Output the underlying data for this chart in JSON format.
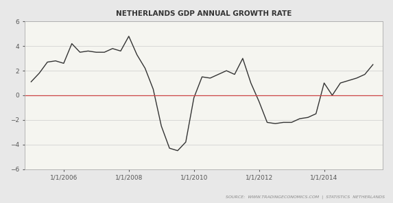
{
  "title": "NETHERLANDS GDP ANNUAL GROWTH RATE",
  "source_text": "SOURCE:  WWW.TRADINGECONOMICS.COM  |  STATISTICS  NETHERLANDS",
  "background_color": "#e8e8e8",
  "plot_bg_color": "#f5f5f0",
  "line_color": "#333333",
  "zero_line_color": "#cc4444",
  "ylim": [
    -6,
    6
  ],
  "yticks": [
    -6,
    -4,
    -2,
    0,
    2,
    4,
    6
  ],
  "xtick_labels": [
    "1/1/2006",
    "1/1/2008",
    "1/1/2010",
    "1/1/2012",
    "1/1/2014"
  ],
  "xtick_positions": [
    2006.0,
    2008.0,
    2010.0,
    2012.0,
    2014.0
  ],
  "xlim": [
    2004.8,
    2015.8
  ],
  "data": [
    [
      2005.0,
      1.1
    ],
    [
      2005.25,
      1.8
    ],
    [
      2005.5,
      2.7
    ],
    [
      2005.75,
      2.8
    ],
    [
      2006.0,
      2.6
    ],
    [
      2006.25,
      4.2
    ],
    [
      2006.5,
      3.5
    ],
    [
      2006.75,
      3.6
    ],
    [
      2007.0,
      3.5
    ],
    [
      2007.25,
      3.5
    ],
    [
      2007.5,
      3.8
    ],
    [
      2007.75,
      3.6
    ],
    [
      2008.0,
      4.8
    ],
    [
      2008.25,
      3.3
    ],
    [
      2008.5,
      2.2
    ],
    [
      2008.75,
      0.5
    ],
    [
      2009.0,
      -2.5
    ],
    [
      2009.25,
      -4.3
    ],
    [
      2009.5,
      -4.5
    ],
    [
      2009.75,
      -3.8
    ],
    [
      2010.0,
      -0.2
    ],
    [
      2010.25,
      1.5
    ],
    [
      2010.5,
      1.4
    ],
    [
      2010.75,
      1.7
    ],
    [
      2011.0,
      2.0
    ],
    [
      2011.25,
      1.7
    ],
    [
      2011.5,
      3.0
    ],
    [
      2011.75,
      1.0
    ],
    [
      2012.0,
      -0.5
    ],
    [
      2012.25,
      -2.2
    ],
    [
      2012.5,
      -2.3
    ],
    [
      2012.75,
      -2.2
    ],
    [
      2013.0,
      -2.2
    ],
    [
      2013.25,
      -1.9
    ],
    [
      2013.5,
      -1.8
    ],
    [
      2013.75,
      -1.5
    ],
    [
      2014.0,
      1.0
    ],
    [
      2014.25,
      0.0
    ],
    [
      2014.5,
      1.0
    ],
    [
      2014.75,
      1.2
    ],
    [
      2015.0,
      1.4
    ],
    [
      2015.25,
      1.7
    ],
    [
      2015.5,
      2.5
    ]
  ]
}
